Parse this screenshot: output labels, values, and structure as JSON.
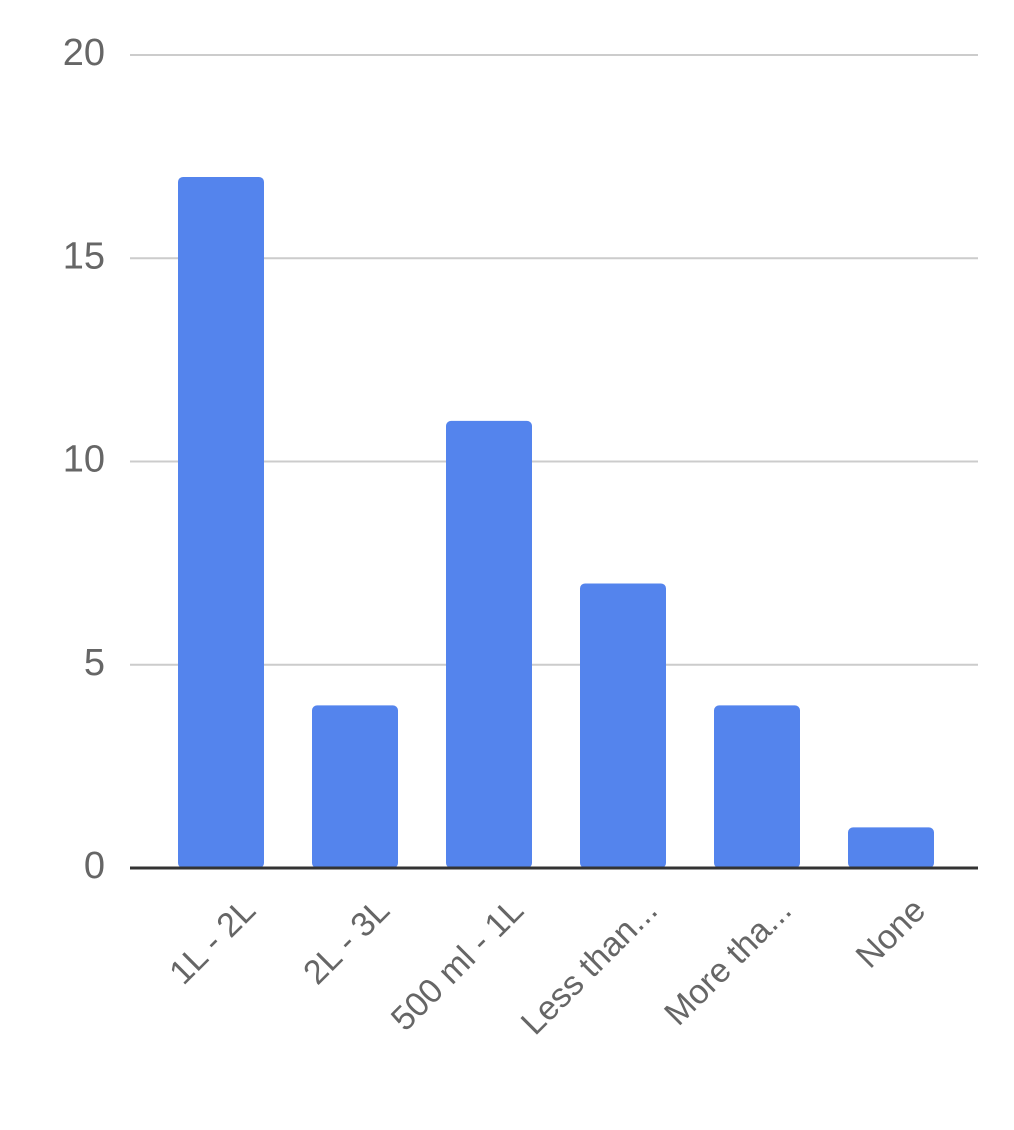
{
  "chart_data": {
    "type": "bar",
    "categories": [
      "1L - 2L",
      "2L - 3L",
      "500 ml - 1L",
      "Less than...",
      "More tha...",
      "None"
    ],
    "values": [
      17,
      4,
      11,
      7,
      4,
      1
    ],
    "color": "#5484ed",
    "ylim": [
      0,
      20
    ],
    "yticks": [
      0,
      5,
      10,
      15,
      20
    ],
    "grid": true
  }
}
